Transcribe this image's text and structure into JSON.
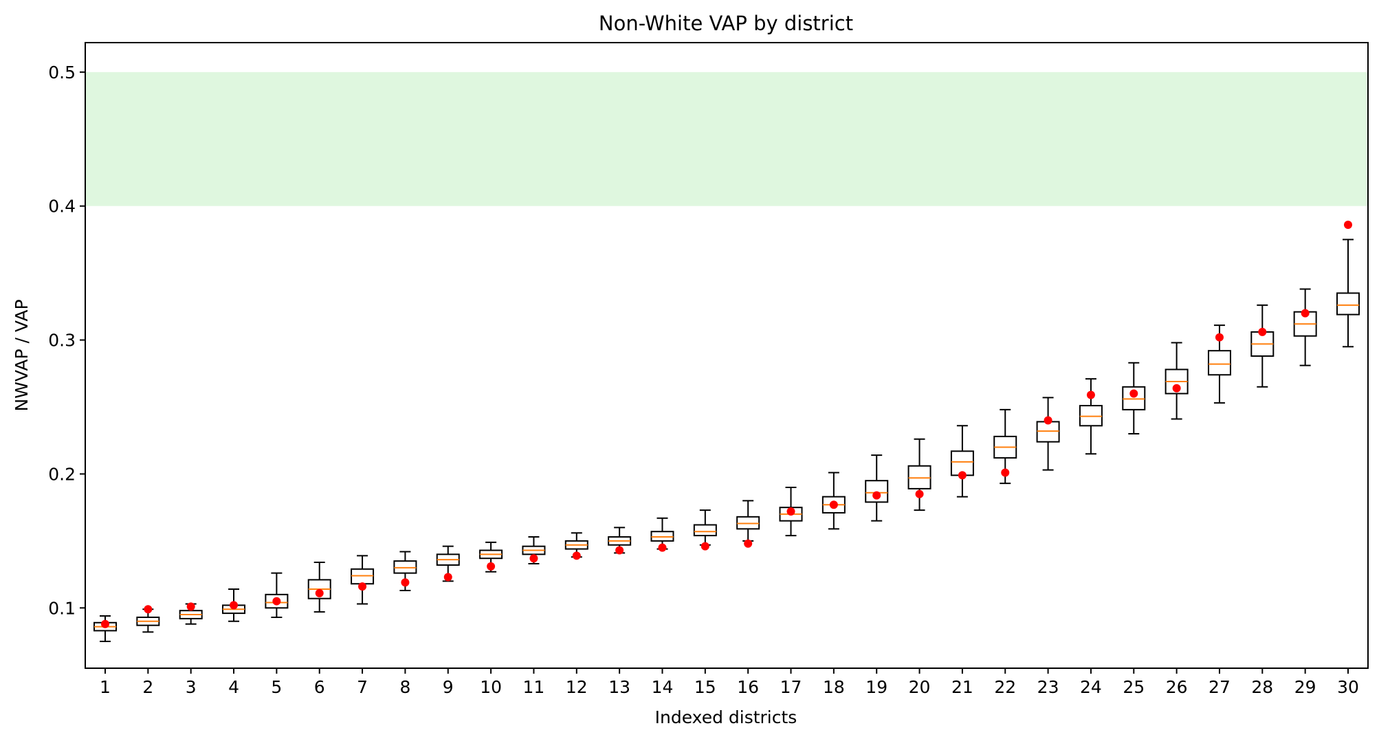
{
  "chart_data": {
    "type": "box",
    "title": "Non-White VAP by district",
    "xlabel": "Indexed districts",
    "ylabel": "NWVAP / VAP",
    "ylim": [
      0.055,
      0.522
    ],
    "yticks": [
      0.1,
      0.2,
      0.3,
      0.4,
      0.5
    ],
    "ytick_labels": [
      "0.1",
      "0.2",
      "0.3",
      "0.4",
      "0.5"
    ],
    "shaded_band": {
      "y_from": 0.4,
      "y_to": 0.5,
      "color": "#dff7df"
    },
    "colors": {
      "box": "#000000",
      "median": "#ff7f0e",
      "point": "#ff0000"
    },
    "categories": [
      "1",
      "2",
      "3",
      "4",
      "5",
      "6",
      "7",
      "8",
      "9",
      "10",
      "11",
      "12",
      "13",
      "14",
      "15",
      "16",
      "17",
      "18",
      "19",
      "20",
      "21",
      "22",
      "23",
      "24",
      "25",
      "26",
      "27",
      "28",
      "29",
      "30"
    ],
    "boxes": [
      {
        "whisker_low": 0.075,
        "q1": 0.083,
        "median": 0.086,
        "q3": 0.089,
        "whisker_high": 0.094,
        "point": 0.088
      },
      {
        "whisker_low": 0.082,
        "q1": 0.087,
        "median": 0.09,
        "q3": 0.093,
        "whisker_high": 0.099,
        "point": 0.099
      },
      {
        "whisker_low": 0.088,
        "q1": 0.092,
        "median": 0.095,
        "q3": 0.098,
        "whisker_high": 0.103,
        "point": 0.101
      },
      {
        "whisker_low": 0.09,
        "q1": 0.096,
        "median": 0.099,
        "q3": 0.102,
        "whisker_high": 0.114,
        "point": 0.102
      },
      {
        "whisker_low": 0.093,
        "q1": 0.1,
        "median": 0.104,
        "q3": 0.11,
        "whisker_high": 0.126,
        "point": 0.105
      },
      {
        "whisker_low": 0.097,
        "q1": 0.107,
        "median": 0.114,
        "q3": 0.121,
        "whisker_high": 0.134,
        "point": 0.111
      },
      {
        "whisker_low": 0.103,
        "q1": 0.118,
        "median": 0.124,
        "q3": 0.129,
        "whisker_high": 0.139,
        "point": 0.116
      },
      {
        "whisker_low": 0.113,
        "q1": 0.126,
        "median": 0.13,
        "q3": 0.135,
        "whisker_high": 0.142,
        "point": 0.119
      },
      {
        "whisker_low": 0.12,
        "q1": 0.132,
        "median": 0.136,
        "q3": 0.14,
        "whisker_high": 0.146,
        "point": 0.123
      },
      {
        "whisker_low": 0.127,
        "q1": 0.137,
        "median": 0.14,
        "q3": 0.143,
        "whisker_high": 0.149,
        "point": 0.131
      },
      {
        "whisker_low": 0.133,
        "q1": 0.14,
        "median": 0.143,
        "q3": 0.146,
        "whisker_high": 0.153,
        "point": 0.137
      },
      {
        "whisker_low": 0.138,
        "q1": 0.144,
        "median": 0.147,
        "q3": 0.15,
        "whisker_high": 0.156,
        "point": 0.139
      },
      {
        "whisker_low": 0.141,
        "q1": 0.147,
        "median": 0.15,
        "q3": 0.153,
        "whisker_high": 0.16,
        "point": 0.143
      },
      {
        "whisker_low": 0.144,
        "q1": 0.15,
        "median": 0.153,
        "q3": 0.157,
        "whisker_high": 0.167,
        "point": 0.145
      },
      {
        "whisker_low": 0.147,
        "q1": 0.154,
        "median": 0.157,
        "q3": 0.162,
        "whisker_high": 0.173,
        "point": 0.146
      },
      {
        "whisker_low": 0.15,
        "q1": 0.159,
        "median": 0.163,
        "q3": 0.168,
        "whisker_high": 0.18,
        "point": 0.148
      },
      {
        "whisker_low": 0.154,
        "q1": 0.165,
        "median": 0.17,
        "q3": 0.175,
        "whisker_high": 0.19,
        "point": 0.172
      },
      {
        "whisker_low": 0.159,
        "q1": 0.171,
        "median": 0.177,
        "q3": 0.183,
        "whisker_high": 0.201,
        "point": 0.177
      },
      {
        "whisker_low": 0.165,
        "q1": 0.179,
        "median": 0.186,
        "q3": 0.195,
        "whisker_high": 0.214,
        "point": 0.184
      },
      {
        "whisker_low": 0.173,
        "q1": 0.189,
        "median": 0.197,
        "q3": 0.206,
        "whisker_high": 0.226,
        "point": 0.185
      },
      {
        "whisker_low": 0.183,
        "q1": 0.199,
        "median": 0.209,
        "q3": 0.217,
        "whisker_high": 0.236,
        "point": 0.199
      },
      {
        "whisker_low": 0.193,
        "q1": 0.212,
        "median": 0.22,
        "q3": 0.228,
        "whisker_high": 0.248,
        "point": 0.201
      },
      {
        "whisker_low": 0.203,
        "q1": 0.224,
        "median": 0.232,
        "q3": 0.239,
        "whisker_high": 0.257,
        "point": 0.24
      },
      {
        "whisker_low": 0.215,
        "q1": 0.236,
        "median": 0.243,
        "q3": 0.251,
        "whisker_high": 0.271,
        "point": 0.259
      },
      {
        "whisker_low": 0.23,
        "q1": 0.248,
        "median": 0.256,
        "q3": 0.265,
        "whisker_high": 0.283,
        "point": 0.26
      },
      {
        "whisker_low": 0.241,
        "q1": 0.26,
        "median": 0.269,
        "q3": 0.278,
        "whisker_high": 0.298,
        "point": 0.264
      },
      {
        "whisker_low": 0.253,
        "q1": 0.274,
        "median": 0.282,
        "q3": 0.292,
        "whisker_high": 0.311,
        "point": 0.302
      },
      {
        "whisker_low": 0.265,
        "q1": 0.288,
        "median": 0.297,
        "q3": 0.306,
        "whisker_high": 0.326,
        "point": 0.306
      },
      {
        "whisker_low": 0.281,
        "q1": 0.303,
        "median": 0.312,
        "q3": 0.321,
        "whisker_high": 0.338,
        "point": 0.32
      },
      {
        "whisker_low": 0.295,
        "q1": 0.319,
        "median": 0.326,
        "q3": 0.335,
        "whisker_high": 0.375,
        "point": 0.386
      }
    ]
  }
}
